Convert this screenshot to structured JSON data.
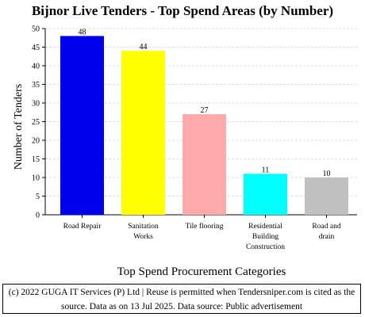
{
  "chart_data": {
    "type": "bar",
    "title": "Bijnor Live Tenders - Top Spend Areas (by Number)",
    "xlabel": "Top Spend Procurement Categories",
    "ylabel": "Number of Tenders",
    "ylim": [
      0,
      50
    ],
    "yticks": [
      0,
      5,
      10,
      15,
      20,
      25,
      30,
      35,
      40,
      45,
      50
    ],
    "grid": true,
    "categories": [
      [
        "Road Repair"
      ],
      [
        "Sanitation",
        "Works"
      ],
      [
        "Tile flooring"
      ],
      [
        "Residential",
        "Building",
        "Construction"
      ],
      [
        "Road and",
        "drain"
      ]
    ],
    "values": [
      48,
      44,
      27,
      11,
      10
    ],
    "colors": [
      "#0000ee",
      "#ffff00",
      "#ffaaaa",
      "#00ffff",
      "#c0c0c0"
    ]
  },
  "footer": {
    "line1": "(c) 2022 GUGA IT Services (P) Ltd | Reuse is permitted when Tendersniper.com is cited as the",
    "line2": "source. Data as on 13 Jul 2025. Data source: Public advertisement"
  }
}
